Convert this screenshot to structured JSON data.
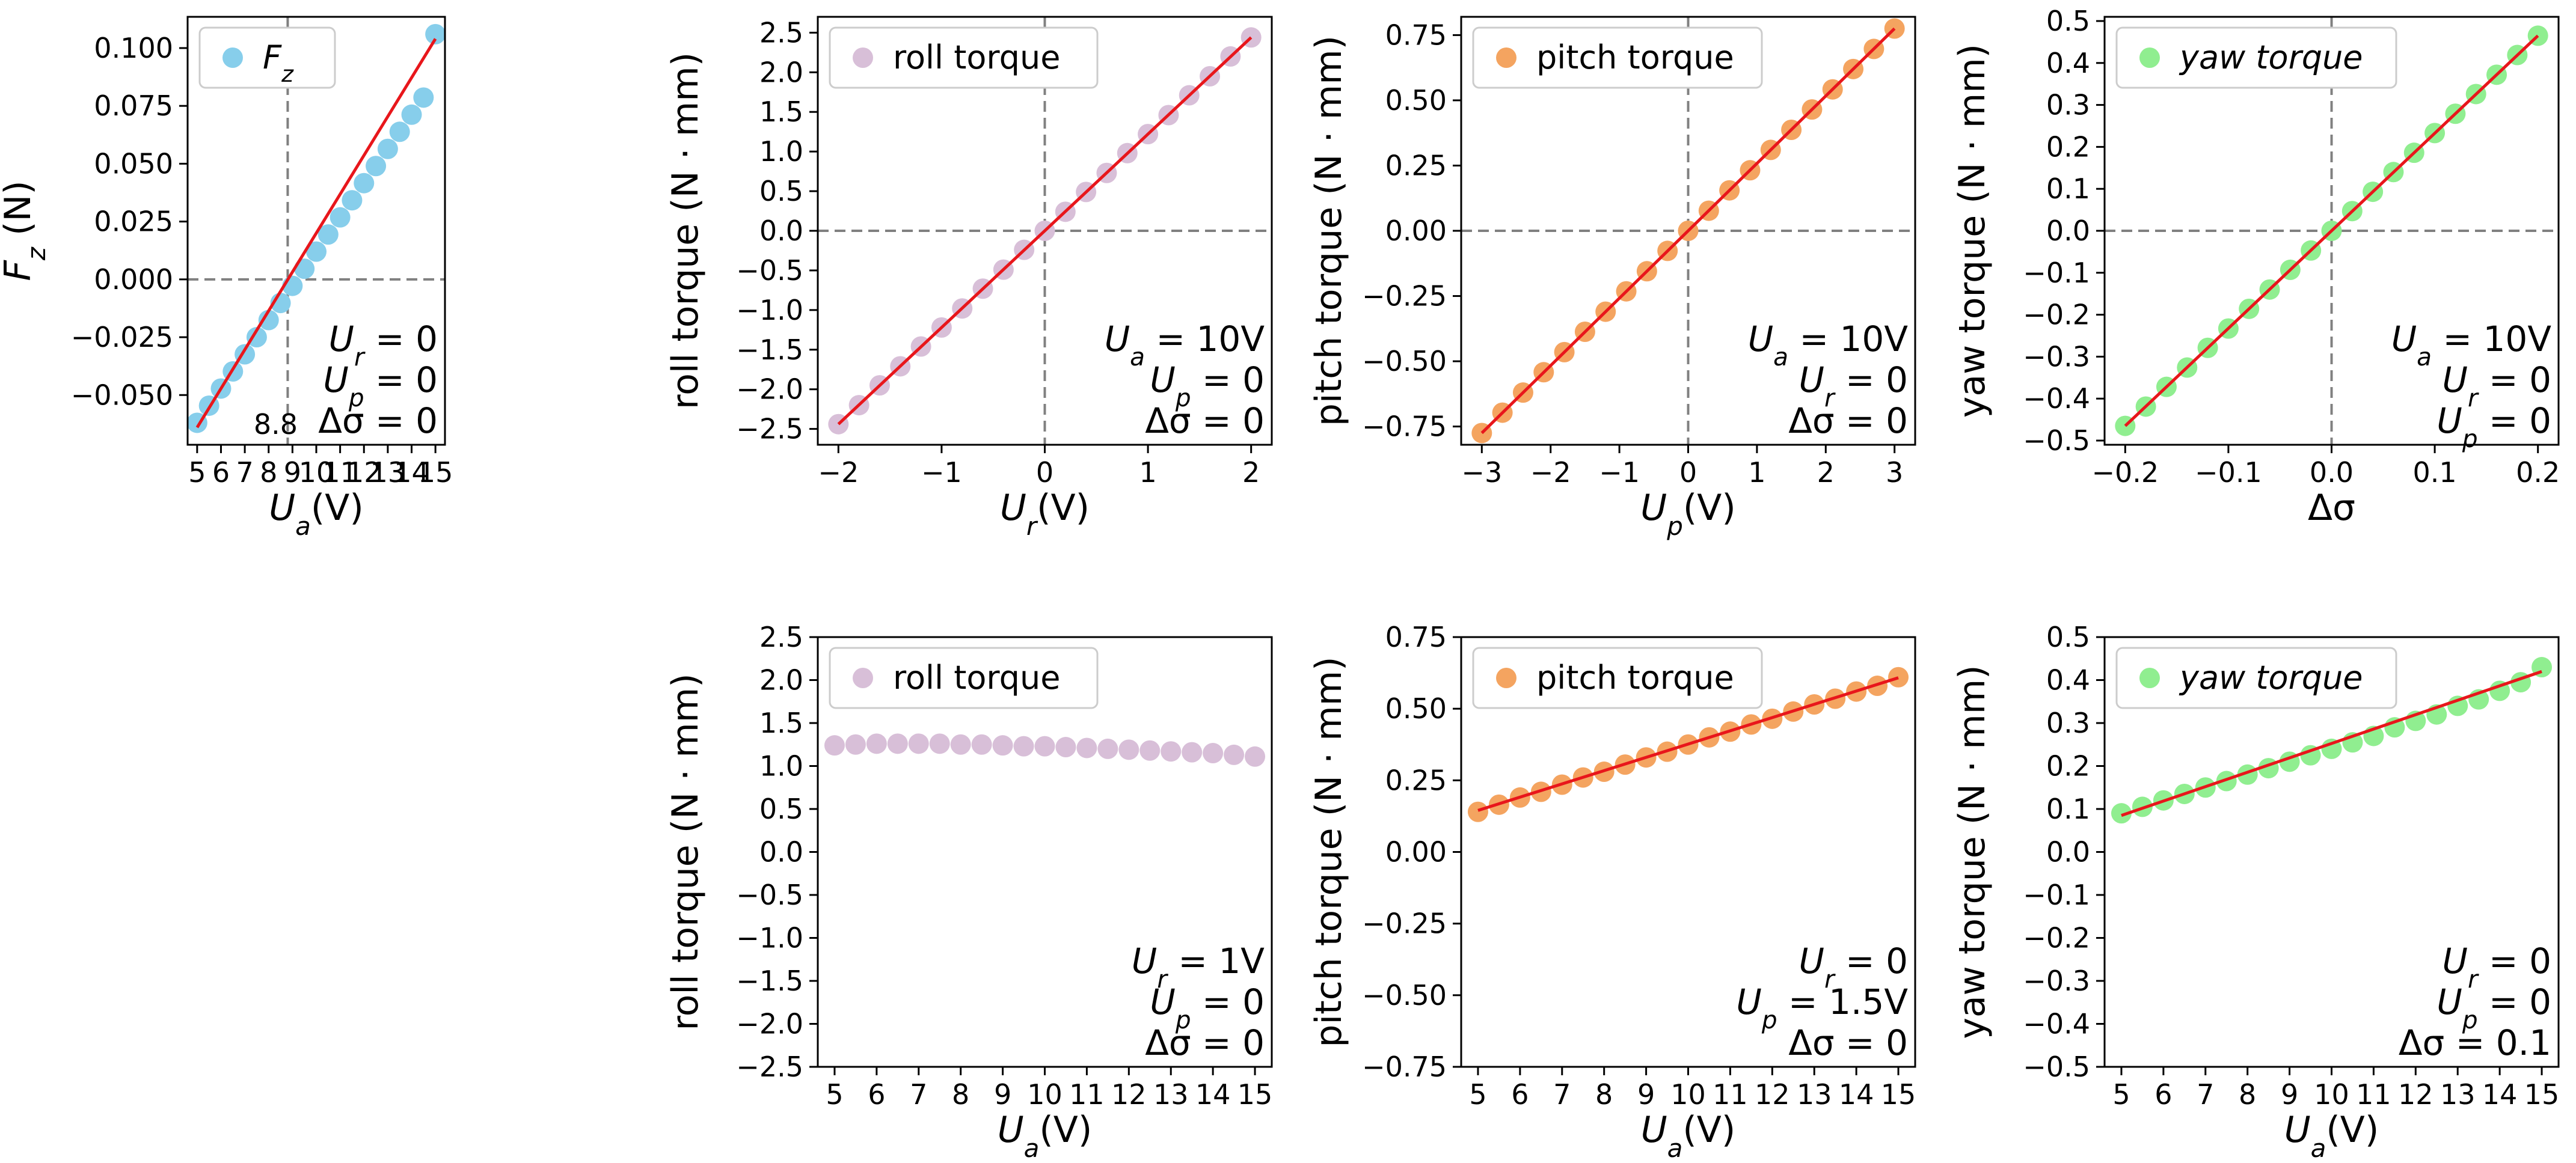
{
  "chart_data": [
    {
      "id": "fz",
      "type": "scatter",
      "xlabel": "U_a(V)",
      "ylabel": "F_z (N)",
      "xlim": [
        4.6,
        15.4
      ],
      "ylim": [
        -0.0715,
        0.1135
      ],
      "xticks": [
        5,
        6,
        7,
        8,
        9,
        10,
        11,
        12,
        13,
        14,
        15
      ],
      "xtick_labels": [
        "5",
        "6",
        "7",
        "8",
        "9",
        "10",
        "11",
        "12",
        "13",
        "14",
        "15"
      ],
      "yticks": [
        -0.05,
        -0.025,
        0.0,
        0.025,
        0.05,
        0.075,
        0.1
      ],
      "ytick_labels": [
        "−0.050",
        "−0.025",
        "0.000",
        "0.025",
        "0.050",
        "0.075",
        "0.100"
      ],
      "series": [
        {
          "name": "F_z",
          "color": "#87CEEB",
          "x": [
            5,
            5.5,
            6,
            6.5,
            7,
            7.5,
            8,
            8.5,
            9,
            9.5,
            10,
            10.5,
            11,
            11.5,
            12,
            12.5,
            13,
            13.5,
            14,
            14.5,
            15
          ],
          "y": [
            -0.062,
            -0.0546,
            -0.0472,
            -0.0398,
            -0.0324,
            -0.025,
            -0.0176,
            -0.0102,
            -0.0028,
            0.0046,
            0.012,
            0.0194,
            0.0268,
            0.0342,
            0.0416,
            0.049,
            0.0564,
            0.0638,
            0.0712,
            0.0786,
            0.106
          ]
        }
      ],
      "fit": {
        "x": [
          5,
          15
        ],
        "y": [
          -0.064,
          0.104
        ],
        "color": "#E8161B"
      },
      "hline": 0,
      "vline": 8.8,
      "vline_label": "8.8",
      "annotation": [
        "U_r = 0",
        "U_p = 0",
        "Δσ = 0"
      ],
      "legend": "upper-left"
    },
    {
      "id": "roll1",
      "type": "scatter",
      "xlabel": "U_r(V)",
      "ylabel": "roll torque (N · mm)",
      "xlim": [
        -2.2,
        2.2
      ],
      "ylim": [
        -2.7,
        2.7
      ],
      "xticks": [
        -2,
        -1,
        0,
        1,
        2
      ],
      "xtick_labels": [
        "−2",
        "−1",
        "0",
        "1",
        "2"
      ],
      "yticks": [
        -2.5,
        -2,
        -1.5,
        -1,
        -0.5,
        0,
        0.5,
        1,
        1.5,
        2,
        2.5
      ],
      "ytick_labels": [
        "−2.5",
        "−2.0",
        "−1.5",
        "−1.0",
        "−0.5",
        "0.0",
        "0.5",
        "1.0",
        "1.5",
        "2.0",
        "2.5"
      ],
      "series": [
        {
          "name": "roll torque",
          "color": "#D8BFD8",
          "x": [
            -2,
            -1.8,
            -1.6,
            -1.4,
            -1.2,
            -1,
            -0.8,
            -0.6,
            -0.4,
            -0.2,
            0,
            0.2,
            0.4,
            0.6,
            0.8,
            1,
            1.2,
            1.4,
            1.6,
            1.8,
            2
          ],
          "y": [
            -2.44,
            -2.2,
            -1.95,
            -1.71,
            -1.46,
            -1.22,
            -0.98,
            -0.73,
            -0.49,
            -0.24,
            0,
            0.24,
            0.49,
            0.73,
            0.98,
            1.22,
            1.46,
            1.71,
            1.95,
            2.2,
            2.44
          ]
        }
      ],
      "fit": {
        "x": [
          -2,
          2
        ],
        "y": [
          -2.44,
          2.44
        ],
        "color": "#E8161B"
      },
      "hline": 0,
      "vline": 0,
      "annotation": [
        "U_a = 10V",
        "U_p = 0",
        "Δσ = 0"
      ],
      "legend": "upper-left"
    },
    {
      "id": "pitch1",
      "type": "scatter",
      "xlabel": "U_p(V)",
      "ylabel": "pitch torque (N · mm)",
      "xlim": [
        -3.3,
        3.3
      ],
      "ylim": [
        -0.82,
        0.82
      ],
      "xticks": [
        -3,
        -2,
        -1,
        0,
        1,
        2,
        3
      ],
      "xtick_labels": [
        "−3",
        "−2",
        "−1",
        "0",
        "1",
        "2",
        "3"
      ],
      "yticks": [
        -0.75,
        -0.5,
        -0.25,
        0,
        0.25,
        0.5,
        0.75
      ],
      "ytick_labels": [
        "−0.75",
        "−0.50",
        "−0.25",
        "0.00",
        "0.25",
        "0.50",
        "0.75"
      ],
      "series": [
        {
          "name": "pitch torque",
          "color": "#F4A460",
          "x": [
            -3,
            -2.7,
            -2.4,
            -2.1,
            -1.8,
            -1.5,
            -1.2,
            -0.9,
            -0.6,
            -0.3,
            0,
            0.3,
            0.6,
            0.9,
            1.2,
            1.5,
            1.8,
            2.1,
            2.4,
            2.7,
            3
          ],
          "y": [
            -0.775,
            -0.697,
            -0.62,
            -0.542,
            -0.465,
            -0.387,
            -0.31,
            -0.232,
            -0.155,
            -0.077,
            0,
            0.077,
            0.155,
            0.232,
            0.31,
            0.387,
            0.465,
            0.542,
            0.62,
            0.697,
            0.775
          ]
        }
      ],
      "fit": {
        "x": [
          -3,
          3
        ],
        "y": [
          -0.775,
          0.775
        ],
        "color": "#E8161B"
      },
      "hline": 0,
      "vline": 0,
      "annotation": [
        "U_a = 10V",
        "U_r = 0",
        "Δσ = 0"
      ],
      "legend": "upper-left"
    },
    {
      "id": "yaw1",
      "type": "scatter",
      "xlabel": "Δσ",
      "ylabel": "yaw torque (N · mm)",
      "xlim": [
        -0.22,
        0.22
      ],
      "ylim": [
        -0.51,
        0.51
      ],
      "xticks": [
        -0.2,
        -0.1,
        0,
        0.1,
        0.2
      ],
      "xtick_labels": [
        "−0.2",
        "−0.1",
        "0.0",
        "0.1",
        "0.2"
      ],
      "yticks": [
        -0.5,
        -0.4,
        -0.3,
        -0.2,
        -0.1,
        0,
        0.1,
        0.2,
        0.3,
        0.4,
        0.5
      ],
      "ytick_labels": [
        "−0.5",
        "−0.4",
        "−0.3",
        "−0.2",
        "−0.1",
        "0.0",
        "0.1",
        "0.2",
        "0.3",
        "0.4",
        "0.5"
      ],
      "series": [
        {
          "name": "yaw torque",
          "color": "#90EE90",
          "x": [
            -0.2,
            -0.18,
            -0.16,
            -0.14,
            -0.12,
            -0.1,
            -0.08,
            -0.06,
            -0.04,
            -0.02,
            0,
            0.02,
            0.04,
            0.06,
            0.08,
            0.1,
            0.12,
            0.14,
            0.16,
            0.18,
            0.2
          ],
          "y": [
            -0.465,
            -0.419,
            -0.372,
            -0.326,
            -0.279,
            -0.233,
            -0.186,
            -0.14,
            -0.093,
            -0.047,
            0,
            0.047,
            0.093,
            0.14,
            0.186,
            0.233,
            0.279,
            0.326,
            0.372,
            0.419,
            0.465
          ]
        }
      ],
      "fit": {
        "x": [
          -0.2,
          0.2
        ],
        "y": [
          -0.465,
          0.465
        ],
        "color": "#E8161B"
      },
      "hline": 0,
      "vline": 0,
      "annotation": [
        "U_a = 10V",
        "U_r = 0",
        "U_p = 0"
      ],
      "legend": "upper-left"
    },
    {
      "id": "roll2",
      "type": "scatter",
      "xlabel": "U_a(V)",
      "ylabel": "roll torque (N · mm)",
      "xlim": [
        4.6,
        15.4
      ],
      "ylim": [
        -2.5,
        2.5
      ],
      "xticks": [
        5,
        6,
        7,
        8,
        9,
        10,
        11,
        12,
        13,
        14,
        15
      ],
      "xtick_labels": [
        "5",
        "6",
        "7",
        "8",
        "9",
        "10",
        "11",
        "12",
        "13",
        "14",
        "15"
      ],
      "yticks": [
        -2.5,
        -2,
        -1.5,
        -1,
        -0.5,
        0,
        0.5,
        1,
        1.5,
        2,
        2.5
      ],
      "ytick_labels": [
        "−2.5",
        "−2.0",
        "−1.5",
        "−1.0",
        "−0.5",
        "0.0",
        "0.5",
        "1.0",
        "1.5",
        "2.0",
        "2.5"
      ],
      "series": [
        {
          "name": "roll torque",
          "color": "#D8BFD8",
          "x": [
            5,
            5.5,
            6,
            6.5,
            7,
            7.5,
            8,
            8.5,
            9,
            9.5,
            10,
            10.5,
            11,
            11.5,
            12,
            12.5,
            13,
            13.5,
            14,
            14.5,
            15
          ],
          "y": [
            1.24,
            1.25,
            1.26,
            1.26,
            1.26,
            1.26,
            1.25,
            1.25,
            1.24,
            1.23,
            1.23,
            1.22,
            1.21,
            1.2,
            1.19,
            1.18,
            1.17,
            1.16,
            1.15,
            1.13,
            1.11
          ]
        }
      ],
      "annotation": [
        "U_r = 1V",
        "U_p = 0",
        "Δσ = 0"
      ],
      "legend": "upper-left"
    },
    {
      "id": "pitch2",
      "type": "scatter",
      "xlabel": "U_a(V)",
      "ylabel": "pitch torque (N · mm)",
      "xlim": [
        4.6,
        15.4
      ],
      "ylim": [
        -0.75,
        0.75
      ],
      "xticks": [
        5,
        6,
        7,
        8,
        9,
        10,
        11,
        12,
        13,
        14,
        15
      ],
      "xtick_labels": [
        "5",
        "6",
        "7",
        "8",
        "9",
        "10",
        "11",
        "12",
        "13",
        "14",
        "15"
      ],
      "yticks": [
        -0.75,
        -0.5,
        -0.25,
        0,
        0.25,
        0.5,
        0.75
      ],
      "ytick_labels": [
        "−0.75",
        "−0.50",
        "−0.25",
        "0.00",
        "0.25",
        "0.50",
        "0.75"
      ],
      "series": [
        {
          "name": "pitch torque",
          "color": "#F4A460",
          "x": [
            5,
            5.5,
            6,
            6.5,
            7,
            7.5,
            8,
            8.5,
            9,
            9.5,
            10,
            10.5,
            11,
            11.5,
            12,
            12.5,
            13,
            13.5,
            14,
            14.5,
            15
          ],
          "y": [
            0.14,
            0.165,
            0.19,
            0.21,
            0.235,
            0.26,
            0.28,
            0.305,
            0.33,
            0.35,
            0.375,
            0.4,
            0.42,
            0.445,
            0.465,
            0.49,
            0.515,
            0.535,
            0.56,
            0.58,
            0.61
          ]
        }
      ],
      "fit": {
        "x": [
          5,
          15
        ],
        "y": [
          0.145,
          0.608
        ],
        "color": "#E8161B"
      },
      "annotation": [
        "U_r = 0",
        "U_p = 1.5V",
        "Δσ = 0"
      ],
      "legend": "upper-left"
    },
    {
      "id": "yaw2",
      "type": "scatter",
      "xlabel": "U_a(V)",
      "ylabel": "yaw torque (N · mm)",
      "xlim": [
        4.6,
        15.4
      ],
      "ylim": [
        -0.5,
        0.5
      ],
      "xticks": [
        5,
        6,
        7,
        8,
        9,
        10,
        11,
        12,
        13,
        14,
        15
      ],
      "xtick_labels": [
        "5",
        "6",
        "7",
        "8",
        "9",
        "10",
        "11",
        "12",
        "13",
        "14",
        "15"
      ],
      "yticks": [
        -0.5,
        -0.4,
        -0.3,
        -0.2,
        -0.1,
        0,
        0.1,
        0.2,
        0.3,
        0.4,
        0.5
      ],
      "ytick_labels": [
        "−0.5",
        "−0.4",
        "−0.3",
        "−0.2",
        "−0.1",
        "0.0",
        "0.1",
        "0.2",
        "0.3",
        "0.4",
        "0.5"
      ],
      "series": [
        {
          "name": "yaw torque",
          "color": "#90EE90",
          "x": [
            5,
            5.5,
            6,
            6.5,
            7,
            7.5,
            8,
            8.5,
            9,
            9.5,
            10,
            10.5,
            11,
            11.5,
            12,
            12.5,
            13,
            13.5,
            14,
            14.5,
            15
          ],
          "y": [
            0.09,
            0.105,
            0.12,
            0.135,
            0.15,
            0.165,
            0.18,
            0.195,
            0.21,
            0.225,
            0.24,
            0.255,
            0.27,
            0.29,
            0.305,
            0.32,
            0.34,
            0.355,
            0.375,
            0.395,
            0.43
          ]
        }
      ],
      "fit": {
        "x": [
          5,
          15
        ],
        "y": [
          0.085,
          0.42
        ],
        "color": "#E8161B"
      },
      "annotation": [
        "U_r = 0",
        "U_p = 0",
        "Δσ = 0.1"
      ],
      "legend": "upper-left"
    }
  ]
}
